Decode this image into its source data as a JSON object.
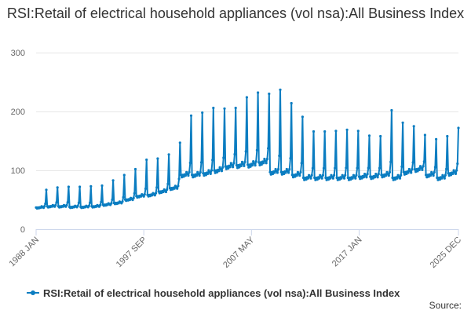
{
  "chart_data": {
    "type": "line",
    "title": "RSI:Retail of electrical household appliances (vol nsa):All Business Index",
    "xlabel": "",
    "ylabel": "",
    "x_start": "1988 JAN",
    "x_end": "2025 DEC",
    "x_tick_labels": [
      "1988 JAN",
      "1997 SEP",
      "2007 MAY",
      "2017 JAN",
      "2025 DEC"
    ],
    "y_ticks": [
      0,
      100,
      200,
      300
    ],
    "ylim": [
      0,
      300
    ],
    "grid": true,
    "legend": "bottom",
    "series": [
      {
        "name": "RSI:Retail of electrical household appliances (vol nsa):All Business Index",
        "color": "#0b7dc1",
        "x_years": [
          1988,
          1989,
          1990,
          1991,
          1992,
          1993,
          1994,
          1995,
          1996,
          1997,
          1998,
          1999,
          2000,
          2001,
          2002,
          2003,
          2004,
          2005,
          2006,
          2007,
          2008,
          2009,
          2010,
          2011,
          2012,
          2013,
          2014,
          2015,
          2016,
          2017,
          2018,
          2019,
          2020,
          2021,
          2022,
          2023,
          2024,
          2025
        ],
        "annual_base": [
          38,
          40,
          40,
          39,
          39,
          40,
          43,
          46,
          52,
          58,
          60,
          66,
          72,
          95,
          95,
          98,
          103,
          110,
          112,
          113,
          117,
          100,
          100,
          95,
          90,
          90,
          90,
          90,
          90,
          92,
          92,
          95,
          90,
          100,
          105,
          95,
          90,
          98
        ],
        "december_peak": [
          67,
          71,
          72,
          72,
          73,
          74,
          83,
          92,
          102,
          118,
          120,
          127,
          147,
          193,
          198,
          206,
          205,
          206,
          224,
          232,
          230,
          237,
          214,
          191,
          166,
          166,
          167,
          169,
          167,
          159,
          158,
          202,
          181,
          175,
          160,
          153,
          158,
          172
        ]
      }
    ]
  },
  "source_label": "Source:"
}
